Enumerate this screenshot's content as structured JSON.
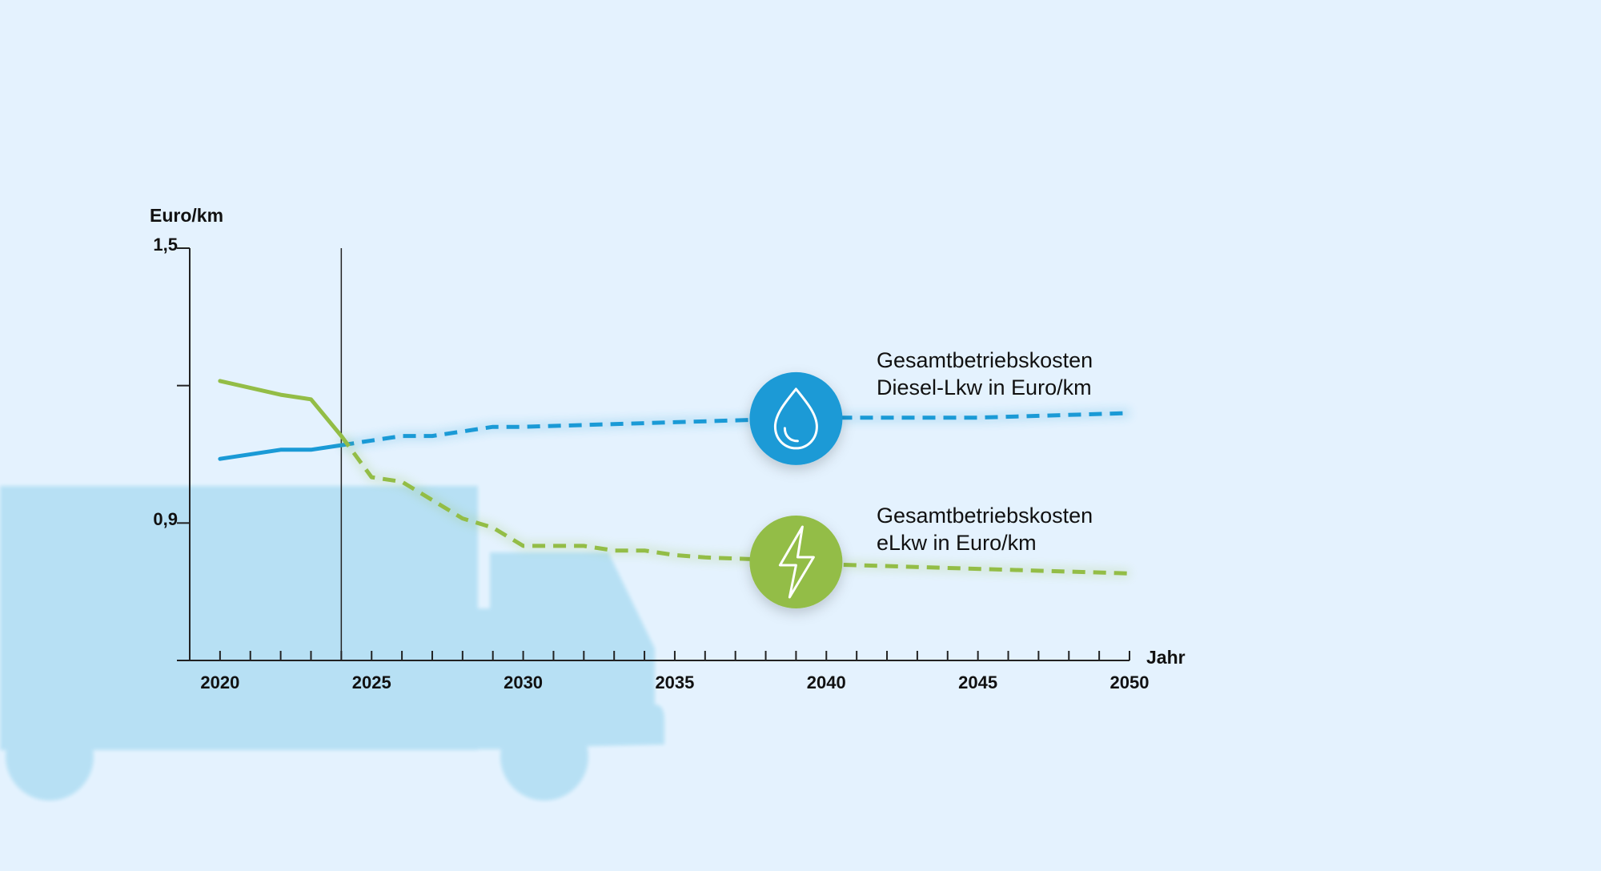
{
  "chart_data": {
    "type": "line",
    "ylabel": "Euro/km",
    "xlabel": "Jahr",
    "ylim": [
      0.6,
      1.5
    ],
    "xlim": [
      2019,
      2050
    ],
    "yticks": [
      1.5,
      1.2,
      0.9,
      0.6
    ],
    "ytick_labels": [
      "1,5",
      "",
      "0,9",
      ""
    ],
    "xtick_labels": [
      "2020",
      "2025",
      "2030",
      "2035",
      "2040",
      "2045",
      "2050"
    ],
    "xtick_values": [
      2020,
      2025,
      2030,
      2035,
      2040,
      2045,
      2050
    ],
    "minor_tick_step": 1,
    "reference_line_x": 2024,
    "grid": false,
    "legend": "inline-right",
    "series": [
      {
        "name": "Gesamtbetriebskosten Diesel-Lkw in Euro/km",
        "name_lines": [
          "Gesamtbetriebskosten",
          "Diesel-Lkw in Euro/km"
        ],
        "color": "#1a9ad6",
        "icon": "water-drop-icon",
        "solid_until": 2024,
        "points": [
          [
            2020,
            1.04
          ],
          [
            2022,
            1.06
          ],
          [
            2023,
            1.06
          ],
          [
            2024,
            1.07
          ],
          [
            2025,
            1.08
          ],
          [
            2026,
            1.09
          ],
          [
            2027,
            1.09
          ],
          [
            2029,
            1.11
          ],
          [
            2030,
            1.11
          ],
          [
            2035,
            1.12
          ],
          [
            2040,
            1.13
          ],
          [
            2045,
            1.13
          ],
          [
            2050,
            1.14
          ]
        ]
      },
      {
        "name": "Gesamtbetriebskosten eLkw in Euro/km",
        "name_lines": [
          "Gesamtbetriebskosten",
          "eLkw in Euro/km"
        ],
        "color": "#93bd46",
        "icon": "lightning-bolt-icon",
        "solid_until": 2024,
        "points": [
          [
            2020,
            1.21
          ],
          [
            2022,
            1.18
          ],
          [
            2023,
            1.17
          ],
          [
            2024,
            1.09
          ],
          [
            2025,
            1.0
          ],
          [
            2026,
            0.99
          ],
          [
            2027,
            0.95
          ],
          [
            2028,
            0.91
          ],
          [
            2029,
            0.89
          ],
          [
            2030,
            0.85
          ],
          [
            2032,
            0.85
          ],
          [
            2033,
            0.84
          ],
          [
            2034,
            0.84
          ],
          [
            2035,
            0.83
          ],
          [
            2036,
            0.825
          ],
          [
            2038,
            0.82
          ],
          [
            2040,
            0.81
          ],
          [
            2045,
            0.8
          ],
          [
            2050,
            0.79
          ]
        ]
      }
    ]
  },
  "colors": {
    "background": "#e4f2fe",
    "truck": "#b5e0f4",
    "axis": "#222222"
  }
}
